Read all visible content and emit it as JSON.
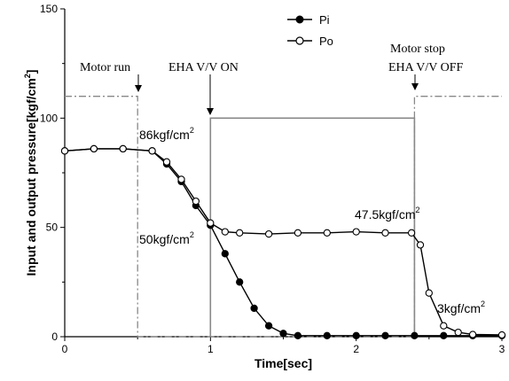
{
  "chart_data": {
    "type": "line",
    "xlabel": "Time[sec]",
    "ylabel": "Input and output pressure",
    "ylabel_unit": "[kgf/cm",
    "ylabel_unit_sup": "2",
    "ylabel_unit_close": "]",
    "xlim": [
      0,
      3
    ],
    "ylim": [
      0,
      150
    ],
    "x_ticks": [
      0,
      1,
      2,
      3
    ],
    "y_ticks": [
      0,
      50,
      100,
      150
    ],
    "grid": false,
    "legend_position": "top-center",
    "series": [
      {
        "name": "Pi",
        "marker": "filled-circle",
        "color": "#000000",
        "x": [
          0.0,
          0.2,
          0.4,
          0.6,
          0.7,
          0.8,
          0.9,
          1.0,
          1.1,
          1.2,
          1.3,
          1.4,
          1.5,
          1.6,
          1.8,
          2.0,
          2.2,
          2.4,
          2.6,
          2.8,
          3.0
        ],
        "values": [
          85,
          86,
          86,
          85,
          79,
          71,
          60,
          51,
          38,
          25,
          13,
          5,
          1.5,
          0.5,
          0.5,
          0.5,
          0.5,
          0.5,
          0.5,
          0.5,
          0.5
        ]
      },
      {
        "name": "Po",
        "marker": "open-circle",
        "color": "#000000",
        "x": [
          0.0,
          0.2,
          0.4,
          0.6,
          0.7,
          0.8,
          0.9,
          1.0,
          1.1,
          1.2,
          1.4,
          1.6,
          1.8,
          2.0,
          2.2,
          2.38,
          2.44,
          2.5,
          2.6,
          2.7,
          2.8,
          3.0
        ],
        "values": [
          85,
          86,
          86,
          85,
          80,
          72,
          62,
          52,
          48,
          47.5,
          47,
          47.5,
          47.5,
          48,
          47.5,
          47.5,
          42,
          20,
          5,
          2,
          1,
          0.8
        ]
      }
    ],
    "valve_pulse": {
      "x": [
        1.0,
        1.0,
        2.4,
        2.4
      ],
      "values": [
        0,
        100,
        100,
        0
      ],
      "color": "#888888"
    },
    "motor_signal": {
      "x": [
        0,
        0.5,
        0.5,
        2.4,
        2.4,
        3.0
      ],
      "values": [
        110,
        110,
        0,
        0,
        110,
        110
      ],
      "color": "#888888"
    },
    "annotations": [
      {
        "key": "motor_run",
        "text": "Motor run",
        "x": 0.5
      },
      {
        "key": "eha_on",
        "text": "EHA V/V ON",
        "x": 1.0
      },
      {
        "key": "motor_stop",
        "text": "Motor stop",
        "x": 2.4
      },
      {
        "key": "eha_off",
        "text": "EHA V/V OFF",
        "x": 2.4
      },
      {
        "key": "v86",
        "text": "86kgf/cm",
        "sup": "2"
      },
      {
        "key": "v50",
        "text": "50kgf/cm",
        "sup": "2"
      },
      {
        "key": "v475",
        "text": "47.5kgf/cm",
        "sup": "2"
      },
      {
        "key": "v3",
        "text": "3kgf/cm",
        "sup": "2"
      }
    ]
  }
}
